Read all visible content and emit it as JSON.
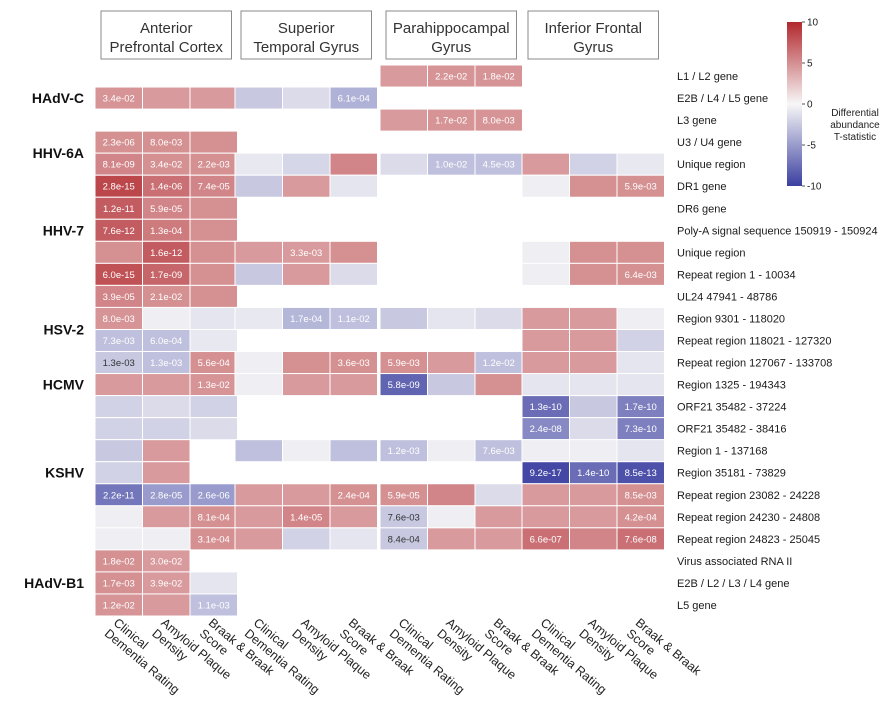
{
  "chart_data": {
    "type": "heatmap",
    "regions": [
      "Anterior\nPrefrontal Cortex",
      "Superior\nTemporal Gyrus",
      "Parahippocampal\nGyrus",
      "Inferior Frontal\nGyrus"
    ],
    "measures": [
      "Clinical\nDementia Rating",
      "Amyloid Plaque\nDensity",
      "Braak & Braak\nScore"
    ],
    "colorbar": {
      "title": [
        "Differential",
        "abundance",
        "T-statistic"
      ],
      "min": -10,
      "max": 10,
      "ticks": [
        10,
        5,
        0,
        -5,
        -10
      ],
      "low_color": "#3b3fa0",
      "mid_color": "#f7f7f7",
      "high_color": "#b2282d"
    },
    "virus_groups": [
      {
        "name": "HAdV-C",
        "start": 0,
        "end": 2
      },
      {
        "name": "HHV-6A",
        "start": 3,
        "end": 4
      },
      {
        "name": "HHV-7",
        "start": 5,
        "end": 9
      },
      {
        "name": "HSV-2",
        "start": 10,
        "end": 13
      },
      {
        "name": "HCMV",
        "start": 14,
        "end": 14
      },
      {
        "name": "KSHV",
        "start": 15,
        "end": 21
      },
      {
        "name": "HAdV-B1",
        "start": 22,
        "end": 24
      }
    ],
    "rows": [
      {
        "label": "L1 / L2 gene",
        "values": [
          null,
          null,
          null,
          null,
          null,
          null,
          4.5,
          4.8,
          4.8,
          null,
          null,
          null
        ],
        "annotations": [
          "",
          "",
          "",
          "",
          "",
          "",
          "",
          "2.2e-02",
          "1.8e-02",
          "",
          "",
          ""
        ]
      },
      {
        "label": "E2B / L4 / L5 gene",
        "values": [
          4.8,
          4.5,
          4.5,
          -2.5,
          -1.5,
          -3.8,
          null,
          null,
          null,
          null,
          null,
          null
        ],
        "annotations": [
          "3.4e-02",
          "",
          "",
          "",
          "",
          "6.1e-04",
          "",
          "",
          "",
          "",
          "",
          ""
        ]
      },
      {
        "label": "L3 gene",
        "values": [
          null,
          null,
          null,
          null,
          null,
          null,
          4.5,
          4.8,
          4.8,
          null,
          null,
          null
        ],
        "annotations": [
          "",
          "",
          "",
          "",
          "",
          "",
          "",
          "1.7e-02",
          "8.0e-03",
          "",
          "",
          ""
        ]
      },
      {
        "label": "U3 / U4 gene",
        "values": [
          5.0,
          5.0,
          5.0,
          null,
          null,
          null,
          null,
          null,
          null,
          null,
          null,
          null
        ],
        "annotations": [
          "2.3e-06",
          "8.0e-03",
          "",
          "",
          "",
          "",
          "",
          "",
          "",
          "",
          "",
          ""
        ]
      },
      {
        "label": "Unique region",
        "values": [
          5.5,
          5.0,
          5.0,
          -0.8,
          -1.8,
          5.5,
          -1.5,
          -3.0,
          -3.0,
          4.5,
          -2.0,
          -0.8
        ],
        "annotations": [
          "8.1e-09",
          "3.4e-02",
          "2.2e-03",
          "",
          "",
          "",
          "",
          "1.0e-02",
          "4.5e-03",
          "",
          "",
          ""
        ]
      },
      {
        "label": "DR1 gene",
        "values": [
          8.5,
          6.5,
          5.5,
          -2.5,
          4.5,
          -1.0,
          null,
          null,
          null,
          -0.5,
          5.0,
          5.0
        ],
        "annotations": [
          "2.8e-15",
          "1.4e-06",
          "7.4e-05",
          "",
          "",
          "",
          "",
          "",
          "",
          "",
          "",
          "5.9e-03"
        ]
      },
      {
        "label": "DR6 gene",
        "values": [
          7.5,
          5.5,
          5.0,
          null,
          null,
          null,
          null,
          null,
          null,
          null,
          null,
          null
        ],
        "annotations": [
          "1.2e-11",
          "5.9e-05",
          "",
          "",
          "",
          "",
          "",
          "",
          "",
          "",
          "",
          ""
        ]
      },
      {
        "label": "Poly-A signal sequence 150919 - 150924",
        "values": [
          7.5,
          6.0,
          5.0,
          null,
          null,
          null,
          null,
          null,
          null,
          null,
          null,
          null
        ],
        "annotations": [
          "7.6e-12",
          "1.3e-04",
          "",
          "",
          "",
          "",
          "",
          "",
          "",
          "",
          "",
          ""
        ]
      },
      {
        "label": "Unique region",
        "values": [
          5.0,
          7.5,
          5.0,
          4.5,
          4.5,
          5.0,
          null,
          null,
          null,
          -0.5,
          5.0,
          5.0
        ],
        "annotations": [
          "",
          "1.6e-12",
          "",
          "",
          "3.3e-03",
          "",
          "",
          "",
          "",
          "",
          "",
          ""
        ]
      },
      {
        "label": "Repeat region 1 - 10034",
        "values": [
          8.0,
          7.0,
          5.0,
          -2.5,
          4.5,
          -1.5,
          null,
          null,
          null,
          -0.5,
          5.0,
          5.0
        ],
        "annotations": [
          "6.0e-15",
          "1.7e-09",
          "",
          "",
          "",
          "",
          "",
          "",
          "",
          "",
          "",
          "6.4e-03"
        ]
      },
      {
        "label": "UL24 47941 - 48786",
        "values": [
          5.5,
          5.0,
          5.0,
          null,
          null,
          null,
          null,
          null,
          null,
          null,
          null,
          null
        ],
        "annotations": [
          "3.9e-05",
          "2.1e-02",
          "",
          "",
          "",
          "",
          "",
          "",
          "",
          "",
          "",
          ""
        ]
      },
      {
        "label": "Region 9301 - 118020",
        "values": [
          4.8,
          -0.5,
          -1.0,
          -0.8,
          -3.5,
          -3.0,
          -2.5,
          -1.0,
          -1.5,
          4.5,
          4.5,
          -0.5
        ],
        "annotations": [
          "8.0e-03",
          "",
          "",
          "",
          "1.7e-04",
          "1.1e-02",
          "",
          "",
          "",
          "",
          "",
          ""
        ]
      },
      {
        "label": "Repeat region 118021 - 127320",
        "values": [
          -3.0,
          -3.0,
          -0.8,
          null,
          null,
          null,
          null,
          null,
          null,
          4.5,
          4.5,
          -2.0
        ],
        "annotations": [
          "7.3e-03",
          "6.0e-04",
          "",
          "",
          "",
          "",
          "",
          "",
          "",
          "",
          "",
          ""
        ]
      },
      {
        "label": "Repeat region 127067 - 133708",
        "values": [
          -2.5,
          -3.0,
          5.0,
          -0.5,
          5.0,
          5.0,
          5.0,
          4.5,
          -3.0,
          4.5,
          4.5,
          -1.0
        ],
        "annotations": [
          "1.3e-03",
          "1.3e-03",
          "5.6e-04",
          "",
          "",
          "3.6e-03",
          "5.9e-03",
          "",
          "1.2e-02",
          "",
          "",
          ""
        ]
      },
      {
        "label": "Region 1325 - 194343",
        "values": [
          4.5,
          4.5,
          4.8,
          -0.5,
          4.5,
          4.5,
          -8.0,
          -2.5,
          5.0,
          -1.0,
          -1.0,
          -1.0
        ],
        "annotations": [
          "",
          "",
          "1.3e-02",
          "",
          "",
          "",
          "5.8e-09",
          "",
          "",
          "",
          "",
          ""
        ]
      },
      {
        "label": "ORF21 35482 - 37224",
        "values": [
          -2.0,
          -1.5,
          -2.0,
          null,
          null,
          null,
          null,
          null,
          null,
          -7.5,
          -2.5,
          -6.5
        ],
        "annotations": [
          "",
          "",
          "",
          "",
          "",
          "",
          "",
          "",
          "",
          "1.3e-10",
          "",
          "1.7e-10"
        ]
      },
      {
        "label": "ORF21 35482 - 38416",
        "values": [
          -2.0,
          -2.0,
          -1.5,
          null,
          null,
          null,
          null,
          null,
          null,
          -6.0,
          -1.5,
          -6.5
        ],
        "annotations": [
          "",
          "",
          "",
          "",
          "",
          "",
          "",
          "",
          "",
          "2.4e-08",
          "",
          "7.3e-10"
        ]
      },
      {
        "label": "Region 1 - 137168",
        "values": [
          -2.5,
          4.5,
          null,
          -3.0,
          -0.5,
          -3.0,
          -3.0,
          -0.5,
          -3.0,
          -0.5,
          -0.5,
          -1.0
        ],
        "annotations": [
          "",
          "",
          "",
          "",
          "",
          "",
          "1.2e-03",
          "",
          "7.6e-03",
          "",
          "",
          ""
        ]
      },
      {
        "label": "Region 35181 - 73829",
        "values": [
          -2.0,
          4.5,
          null,
          null,
          null,
          null,
          null,
          null,
          null,
          -9.5,
          -7.5,
          -9.0
        ],
        "annotations": [
          "",
          "",
          "",
          "",
          "",
          "",
          "",
          "",
          "",
          "9.2e-17",
          "1.4e-10",
          "8.5e-13"
        ]
      },
      {
        "label": "Repeat region 23082 - 24228",
        "values": [
          -7.0,
          -5.0,
          -5.0,
          4.5,
          4.5,
          5.0,
          5.0,
          5.5,
          -1.5,
          4.5,
          4.5,
          5.0
        ],
        "annotations": [
          "2.2e-11",
          "2.8e-05",
          "2.6e-06",
          "",
          "",
          "2.4e-04",
          "5.9e-05",
          "",
          "",
          "",
          "",
          "8.5e-03"
        ]
      },
      {
        "label": "Repeat region 24230 - 24808",
        "values": [
          -0.5,
          4.5,
          5.0,
          4.5,
          5.5,
          4.5,
          -2.5,
          -0.5,
          4.5,
          4.5,
          4.5,
          5.0
        ],
        "annotations": [
          "",
          "",
          "8.1e-04",
          "",
          "1.4e-05",
          "",
          "7.6e-03",
          "",
          "",
          "",
          "",
          "4.2e-04"
        ]
      },
      {
        "label": "Repeat region 24823 - 25045",
        "values": [
          -0.5,
          -0.5,
          5.0,
          4.5,
          -2.0,
          -1.0,
          -2.5,
          4.5,
          4.5,
          6.5,
          5.5,
          6.5
        ],
        "annotations": [
          "",
          "",
          "3.1e-04",
          "",
          "",
          "",
          "8.4e-04",
          "",
          "",
          "6.6e-07",
          "",
          "7.6e-08"
        ]
      },
      {
        "label": "Virus associated RNA II",
        "values": [
          5.0,
          4.5,
          null,
          null,
          null,
          null,
          null,
          null,
          null,
          null,
          null,
          null
        ],
        "annotations": [
          "1.8e-02",
          "3.0e-02",
          "",
          "",
          "",
          "",
          "",
          "",
          "",
          "",
          "",
          ""
        ]
      },
      {
        "label": "E2B / L2 / L3 / L4 gene",
        "values": [
          5.0,
          4.5,
          -1.0,
          null,
          null,
          null,
          null,
          null,
          null,
          null,
          null,
          null
        ],
        "annotations": [
          "1.7e-03",
          "3.9e-02",
          "",
          "",
          "",
          "",
          "",
          "",
          "",
          "",
          "",
          ""
        ]
      },
      {
        "label": "L5 gene",
        "values": [
          4.8,
          4.5,
          -3.0,
          null,
          null,
          null,
          null,
          null,
          null,
          null,
          null,
          null
        ],
        "annotations": [
          "1.2e-02",
          "",
          "1.1e-03",
          "",
          "",
          "",
          "",
          "",
          "",
          "",
          "",
          ""
        ]
      }
    ]
  }
}
